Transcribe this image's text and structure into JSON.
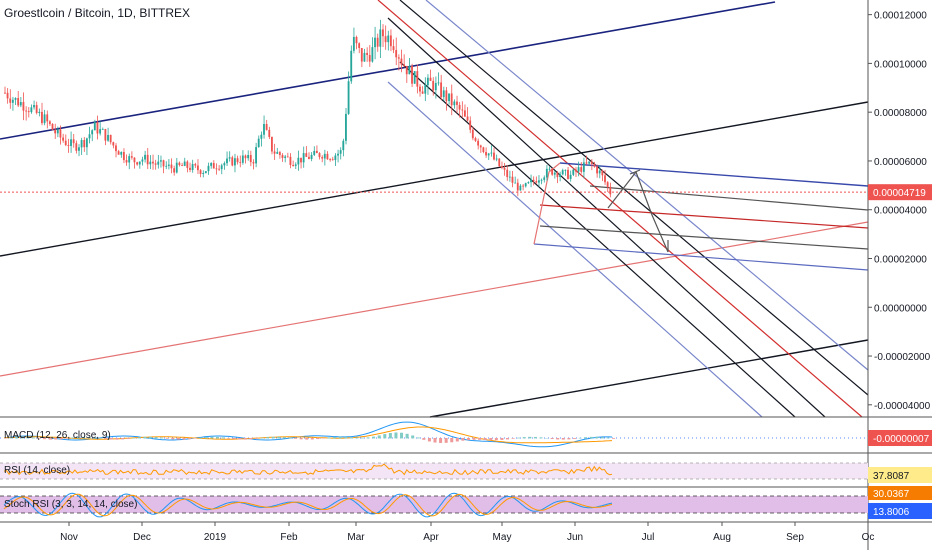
{
  "header": {
    "title": "Groestlcoin / Bitcoin, 1D, BITTREX"
  },
  "indicators": {
    "macd_label": "MACD (12, 26, close, 9)",
    "rsi_label": "RSI (14, close)",
    "stoch_label": "Stoch RSI (3, 3, 14, 14, close)"
  },
  "colors": {
    "candle_up": "#26a69a",
    "candle_down": "#ef5350",
    "price_tag": "#ef5350",
    "rsi_tag": "#ffeb8a",
    "stoch_k_tag": "#f57c00",
    "stoch_d_tag": "#2962ff",
    "rsi_band": "#f3e5f5",
    "stoch_band": "#e1bee7"
  },
  "chart_data": {
    "type": "candlestick",
    "x_ticks": [
      "Nov",
      "Dec",
      "2019",
      "Feb",
      "Mar",
      "Apr",
      "May",
      "Jun",
      "Jul",
      "Aug",
      "Sep",
      "Oc"
    ],
    "y_ticks": [
      "0.00012000",
      "0.00010000",
      "0.00008000",
      "0.00006000",
      "0.00004000",
      "0.00002000",
      "0.00000000",
      "-0.00002000",
      "-0.00004000"
    ],
    "ylim": [
      -4.5e-05,
      0.000126
    ],
    "last_price": "0.00004719",
    "last_price_value": 4.719e-05,
    "close_series": [
      8.8e-05,
      8.5e-05,
      8.3e-05,
      8e-05,
      7.7e-05,
      7.2e-05,
      6.8e-05,
      6.6e-05,
      6.8e-05,
      7.4e-05,
      7.1e-05,
      6.6e-05,
      6.2e-05,
      6e-05,
      6.1e-05,
      5.9e-05,
      5.8e-05,
      5.7e-05,
      5.8e-05,
      5.7e-05,
      5.6e-05,
      5.8e-05,
      5.9e-05,
      6e-05,
      6.1e-05,
      6e-05,
      7.5e-05,
      6.4e-05,
      6.2e-05,
      6e-05,
      6.1e-05,
      6.2e-05,
      6.3e-05,
      6.2e-05,
      6.4e-05,
      0.00011,
      0.000102,
      0.000105,
      0.000112,
      0.00011,
      0.000101,
      9.5e-05,
      9e-05,
      9.2e-05,
      8.8e-05,
      8.4e-05,
      8e-05,
      7.2e-05,
      6.6e-05,
      6.2e-05,
      5.7e-05,
      5.2e-05,
      4.8e-05,
      5.1e-05,
      5.4e-05,
      5.6e-05,
      5.5e-05,
      5.4e-05,
      5.7e-05,
      5.9e-05,
      5.5e-05,
      4.7e-05
    ],
    "macd_value": "-0.00000007",
    "rsi_value": "37.8087",
    "stoch_k_value": "30.0367",
    "stoch_d_value": "13.8006"
  }
}
